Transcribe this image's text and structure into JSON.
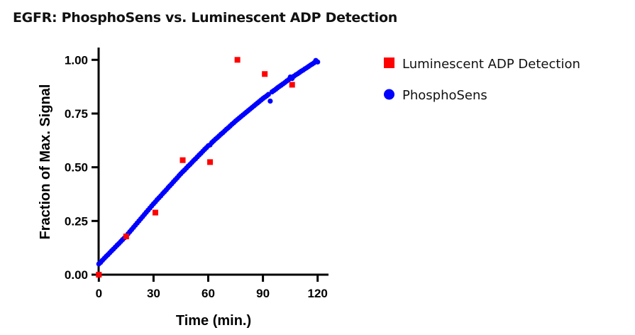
{
  "chart_data": {
    "type": "scatter",
    "title": "EGFR: PhosphoSens vs. Luminescent ADP Detection",
    "xlabel": "Time (min.)",
    "ylabel": "Fraction of Max. Signal",
    "xlim": [
      0,
      126
    ],
    "ylim": [
      0,
      1.055
    ],
    "xticks": [
      "0",
      "30",
      "60",
      "90",
      "120"
    ],
    "yticks": [
      "0.00",
      "0.25",
      "0.50",
      "0.75",
      "1.00"
    ],
    "grid": false,
    "legend_position": "right",
    "series": [
      {
        "name": "Luminescent ADP Detection",
        "marker": "square",
        "color": "#ff0000",
        "x": [
          0,
          15,
          31,
          46,
          61,
          76,
          91,
          106
        ],
        "y": [
          0.0,
          0.178,
          0.289,
          0.533,
          0.524,
          1.0,
          0.934,
          0.884
        ]
      },
      {
        "name": "PhosphoSens",
        "marker": "circle",
        "color": "#0000ff",
        "x": [
          0,
          1,
          2,
          3,
          4,
          5,
          6,
          7,
          8,
          9,
          10,
          11,
          12,
          13,
          14,
          15,
          16,
          17,
          18,
          19,
          20,
          21,
          22,
          23,
          24,
          25,
          26,
          27,
          28,
          29,
          30,
          31,
          32,
          33,
          34,
          35,
          36,
          37,
          38,
          39,
          40,
          41,
          42,
          43,
          44,
          45,
          46,
          47,
          48,
          49,
          50,
          51,
          52,
          53,
          54,
          55,
          56,
          57,
          58,
          59,
          60,
          61,
          62,
          63,
          64,
          65,
          66,
          67,
          68,
          69,
          70,
          71,
          72,
          73,
          74,
          75,
          76,
          77,
          78,
          79,
          80,
          81,
          82,
          83,
          84,
          85,
          86,
          87,
          88,
          89,
          90,
          91,
          92,
          93,
          94,
          95,
          96,
          97,
          98,
          99,
          100,
          101,
          102,
          103,
          104,
          105,
          106,
          107,
          108,
          109,
          110,
          111,
          112,
          113,
          114,
          115,
          116,
          117,
          118,
          119,
          120
        ],
        "y": [
          0.05,
          0.057,
          0.067,
          0.076,
          0.085,
          0.093,
          0.102,
          0.111,
          0.119,
          0.128,
          0.137,
          0.145,
          0.154,
          0.163,
          0.171,
          0.18,
          0.19,
          0.2,
          0.21,
          0.22,
          0.23,
          0.24,
          0.25,
          0.26,
          0.27,
          0.28,
          0.29,
          0.3,
          0.31,
          0.32,
          0.33,
          0.339,
          0.349,
          0.358,
          0.367,
          0.377,
          0.386,
          0.395,
          0.405,
          0.414,
          0.423,
          0.433,
          0.442,
          0.451,
          0.461,
          0.47,
          0.479,
          0.487,
          0.496,
          0.505,
          0.513,
          0.522,
          0.531,
          0.539,
          0.548,
          0.557,
          0.565,
          0.574,
          0.583,
          0.591,
          0.6,
          0.604,
          0.615,
          0.623,
          0.631,
          0.638,
          0.646,
          0.654,
          0.661,
          0.669,
          0.677,
          0.684,
          0.692,
          0.7,
          0.707,
          0.715,
          0.722,
          0.729,
          0.736,
          0.743,
          0.75,
          0.757,
          0.764,
          0.771,
          0.778,
          0.785,
          0.792,
          0.799,
          0.806,
          0.813,
          0.82,
          0.826,
          0.832,
          0.839,
          0.808,
          0.851,
          0.857,
          0.863,
          0.87,
          0.876,
          0.882,
          0.888,
          0.894,
          0.901,
          0.907,
          0.92,
          0.913,
          0.924,
          0.93,
          0.935,
          0.941,
          0.947,
          0.952,
          0.958,
          0.963,
          0.969,
          0.975,
          0.98,
          0.986,
          0.997,
          0.99
        ]
      }
    ]
  }
}
